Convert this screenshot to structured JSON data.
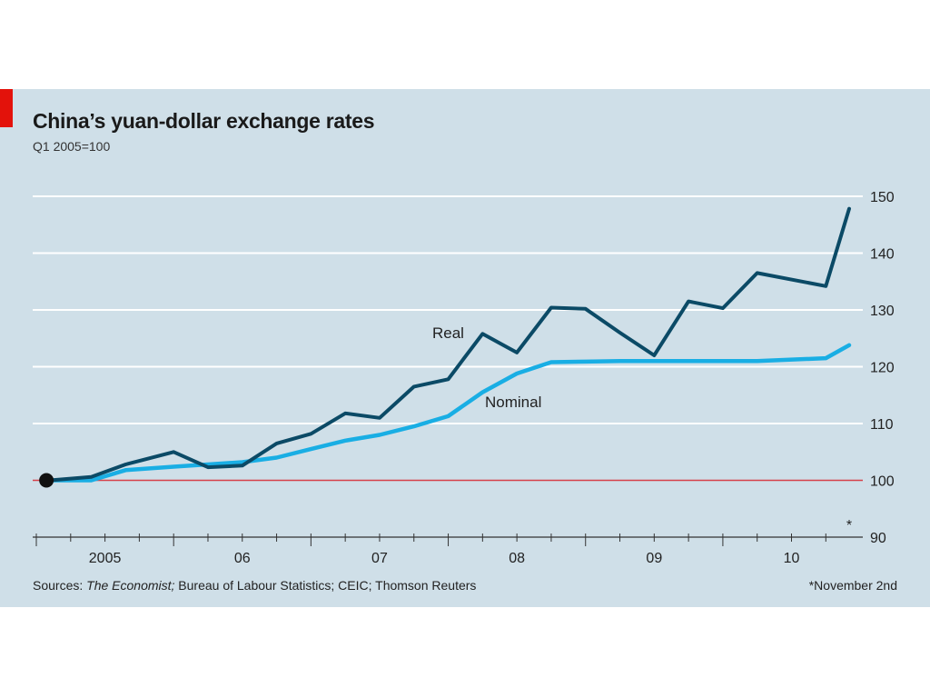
{
  "colors": {
    "background": "#cfdfe8",
    "accent_tab": "#e3120b",
    "real_line": "#0b4a66",
    "nominal_line": "#19aee4",
    "baseline": "#d6404a",
    "gridline": "#ffffff"
  },
  "chart_data": {
    "type": "line",
    "title": "China’s yuan-dollar exchange rates",
    "subtitle": "Q1 2005=100",
    "xlabel": "",
    "ylabel": "",
    "x_tick_labels": [
      "2005",
      "06",
      "07",
      "08",
      "09",
      "10"
    ],
    "y_tick_labels": [
      "150",
      "140",
      "130",
      "120",
      "110",
      "100",
      "90"
    ],
    "y_ticks": [
      150,
      140,
      130,
      120,
      110,
      100,
      90
    ],
    "ylim": [
      90,
      150
    ],
    "xlim": [
      2005.0,
      2010.92
    ],
    "grid": true,
    "baseline": 100,
    "start_marker": {
      "x": 2005.1,
      "y": 100
    },
    "end_marker_label": "*",
    "series": [
      {
        "name": "Real",
        "x": [
          2005.1,
          2005.4,
          2005.65,
          2006.0,
          2006.25,
          2006.5,
          2006.75,
          2007.0,
          2007.25,
          2007.5,
          2007.75,
          2008.0,
          2008.25,
          2008.5,
          2008.75,
          2009.0,
          2009.25,
          2009.5,
          2009.75,
          2010.0,
          2010.25,
          2010.75,
          2010.92
        ],
        "values": [
          100,
          100.6,
          102.8,
          105,
          102.3,
          102.6,
          106.5,
          108.2,
          111.8,
          111,
          116.5,
          117.8,
          125.8,
          122.5,
          130.4,
          130.2,
          126,
          122,
          131.5,
          130.3,
          136.5,
          134.2,
          147.8
        ]
      },
      {
        "name": "Nominal",
        "x": [
          2005.1,
          2005.4,
          2005.65,
          2006.0,
          2006.25,
          2006.5,
          2006.75,
          2007.0,
          2007.25,
          2007.5,
          2007.75,
          2008.0,
          2008.25,
          2008.5,
          2008.75,
          2009.0,
          2009.25,
          2009.5,
          2009.75,
          2010.0,
          2010.25,
          2010.75,
          2010.92
        ],
        "values": [
          100,
          100,
          101.8,
          102.4,
          102.8,
          103.2,
          104,
          105.5,
          107,
          108,
          109.5,
          111.3,
          115.5,
          118.8,
          120.8,
          120.9,
          121,
          121,
          121,
          121,
          121,
          121.5,
          123.8
        ]
      }
    ]
  },
  "sources": {
    "prefix": "Sources: ",
    "italic": "The Economist;",
    "rest": " Bureau of Labour Statistics; CEIC; Thomson Reuters"
  },
  "footnote": "*November 2nd"
}
